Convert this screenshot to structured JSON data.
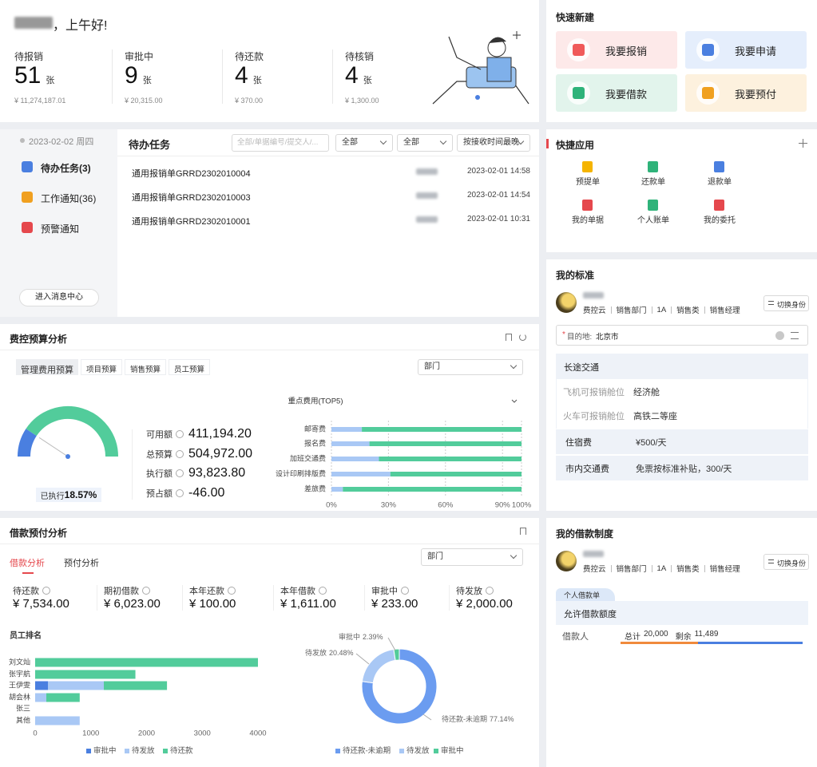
{
  "greeting": "，上午好!",
  "stats": [
    {
      "label": "待报销",
      "count": 51,
      "unit": "张",
      "amount": "¥ 11,274,187.01"
    },
    {
      "label": "审批中",
      "count": 9,
      "unit": "张",
      "amount": "¥ 20,315.00"
    },
    {
      "label": "待还款",
      "count": 4,
      "unit": "张",
      "amount": "¥ 370.00"
    },
    {
      "label": "待核销",
      "count": 4,
      "unit": "张",
      "amount": "¥ 1,300.00"
    }
  ],
  "quick_create": {
    "title": "快速新建",
    "items": [
      "我要报销",
      "我要申请",
      "我要借款",
      "我要预付"
    ]
  },
  "messages": {
    "date": "2023-02-02 周四",
    "tabs": [
      "待办任务(3)",
      "工作通知(36)",
      "预警通知"
    ],
    "button": "进入消息中心"
  },
  "todo": {
    "title": "待办任务",
    "search_placeholder": "全部/单据编号/提交人/...",
    "filters": [
      "全部",
      "全部",
      "按接收时间最晚"
    ],
    "rows": [
      [
        "通用报销单GRRD2302010004",
        "2023-02-01 14:58"
      ],
      [
        "通用报销单GRRD2302010003",
        "2023-02-01 14:54"
      ],
      [
        "通用报销单GRRD2302010001",
        "2023-02-01 10:31"
      ]
    ]
  },
  "quick_apps": {
    "title": "快捷应用",
    "items": [
      "预提单",
      "还款单",
      "退款单",
      "我的单据",
      "个人账单",
      "我的委托"
    ]
  },
  "standard": {
    "title": "我的标准",
    "tags": [
      "费控云",
      "销售部门",
      "1A",
      "销售类",
      "销售经理"
    ],
    "switch": "切换身份",
    "required_mark": "*",
    "destination_label": "目的地:",
    "destination": "北京市",
    "section": "长途交通",
    "rows": [
      [
        "飞机可报销舱位",
        "经济舱"
      ],
      [
        "火车可报销舱位",
        "高铁二等座"
      ],
      [
        "住宿费",
        "¥500/天"
      ],
      [
        "市内交通费",
        "免票按标准补贴，300/天"
      ]
    ]
  },
  "budget": {
    "title": "费控预算分析",
    "tabs": [
      "管理费用预算",
      "项目预算",
      "销售预算",
      "员工预算"
    ],
    "select": "部门",
    "metrics": [
      [
        "可用额",
        "411,194.20"
      ],
      [
        "总预算",
        "504,972.00"
      ],
      [
        "执行额",
        "93,823.80"
      ],
      [
        "预占额",
        "-46.00"
      ]
    ]
  },
  "loan": {
    "title": "借款预付分析",
    "tabs": [
      "借款分析",
      "预付分析"
    ],
    "select": "部门",
    "metrics": [
      [
        "待还款",
        "¥ 7,534.00"
      ],
      [
        "期初借款",
        "¥ 6,023.00"
      ],
      [
        "本年还款",
        "¥ 100.00"
      ],
      [
        "本年借款",
        "¥ 1,611.00"
      ],
      [
        "审批中",
        "¥ 233.00"
      ],
      [
        "待发放",
        "¥ 2,000.00"
      ]
    ]
  },
  "loan_policy": {
    "title": "我的借款制度",
    "tags": [
      "费控云",
      "销售部门",
      "1A",
      "销售类",
      "销售经理"
    ],
    "switch": "切换身份",
    "tab": "个人借款单",
    "section": "允许借款额度",
    "row_label": "借款人",
    "total_label": "总计",
    "total": {
      "value": 20000,
      "label": "20,000"
    },
    "remain_label": "剩余",
    "remain": {
      "value": 11489,
      "label": "11,489"
    }
  },
  "chart_data": [
    {
      "type": "gauge",
      "label": "已执行",
      "value": 18.57,
      "value_label": "18.57%",
      "ylim": [
        0,
        100
      ],
      "colors": [
        "#4a7fe0",
        "#52cc9b"
      ]
    },
    {
      "type": "bar",
      "orientation": "horizontal",
      "stacked": true,
      "title": "重点费用(TOP5)",
      "categories": [
        "邮寄费",
        "报名费",
        "加班交通费",
        "设计印刷排版费",
        "差旅费"
      ],
      "series": [
        {
          "color": "#a9c8f5",
          "values": [
            16,
            20,
            25,
            31,
            6
          ]
        },
        {
          "color": "#52cc9b",
          "values": [
            84,
            80,
            75,
            69,
            94
          ]
        }
      ],
      "xlim": [
        0,
        100
      ],
      "xticks": [
        {
          "value": 0,
          "label": "0%"
        },
        {
          "value": 30,
          "label": "30%"
        },
        {
          "value": 60,
          "label": "60%"
        },
        {
          "value": 90,
          "label": "90%"
        },
        {
          "value": 100,
          "label": "100%"
        }
      ],
      "grid": true
    },
    {
      "type": "bar",
      "orientation": "horizontal",
      "stacked": true,
      "title": "员工排名",
      "categories": [
        "刘文灿",
        "张宇航",
        "王伊雯",
        "胡会林",
        "张三",
        "其他"
      ],
      "series": [
        {
          "name": "审批中",
          "color": "#4a7fe0",
          "values": [
            0,
            0,
            233,
            0,
            0,
            0
          ]
        },
        {
          "name": "待发放",
          "color": "#a9c8f5",
          "values": [
            0,
            0,
            1000,
            200,
            0,
            800
          ]
        },
        {
          "name": "待还款",
          "color": "#52cc9b",
          "values": [
            4000,
            1800,
            1134,
            600,
            0,
            0
          ]
        }
      ],
      "xlim": [
        0,
        4000
      ],
      "xticks": [
        0,
        1000,
        2000,
        3000,
        4000
      ],
      "grid": false,
      "legend": "bottom"
    },
    {
      "type": "pie",
      "donut": true,
      "categories": [
        "待还款-未逾期",
        "待发放",
        "审批中"
      ],
      "values": [
        77.14,
        20.48,
        2.39
      ],
      "value_labels": [
        "77.14%",
        "20.48%",
        "2.39%"
      ],
      "colors": [
        "#6b9cf0",
        "#a9c8f5",
        "#52cc9b"
      ],
      "legend": "bottom"
    }
  ]
}
